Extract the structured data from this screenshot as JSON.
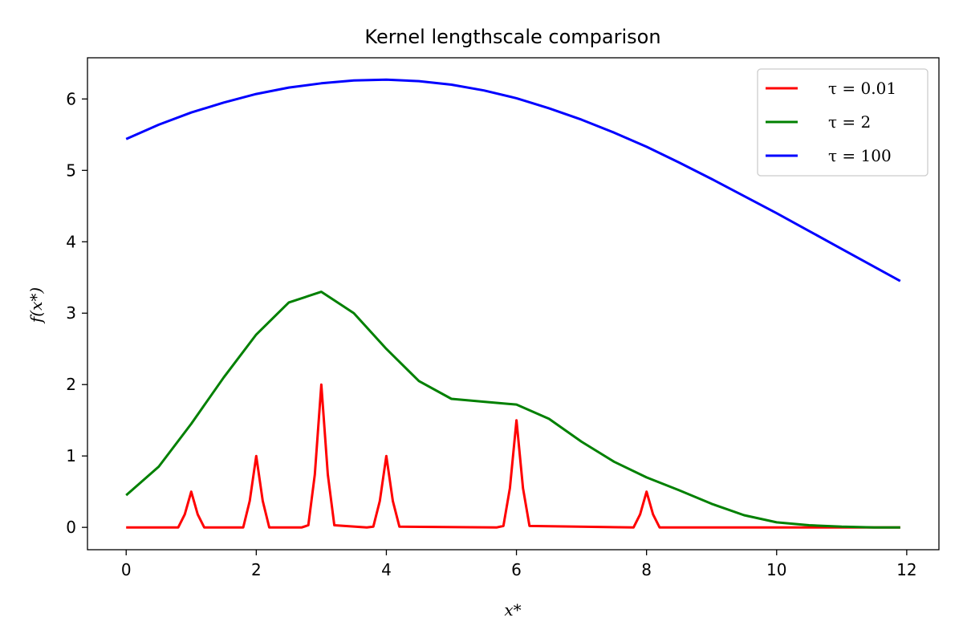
{
  "chart_data": {
    "type": "line",
    "title": "Kernel lengthscale comparison",
    "xlabel": "x*",
    "ylabel": "f(x*)",
    "xlim": [
      -0.595,
      12.495
    ],
    "ylim": [
      -0.313,
      6.577
    ],
    "xticks": [
      "0",
      "2",
      "4",
      "6",
      "8",
      "10",
      "12"
    ],
    "yticks": [
      "0",
      "1",
      "2",
      "3",
      "4",
      "5",
      "6"
    ],
    "grid": false,
    "legend_position": "top-right",
    "series": [
      {
        "name": "τ = 0.01",
        "color": "#ff0000",
        "x": [
          0,
          0.8,
          0.9,
          1,
          1.1,
          1.2,
          1.8,
          1.9,
          2,
          2.1,
          2.2,
          2.7,
          2.8,
          2.9,
          3,
          3.1,
          3.2,
          3.7,
          3.8,
          3.9,
          4,
          4.1,
          4.2,
          5.7,
          5.8,
          5.9,
          6,
          6.1,
          6.2,
          7.8,
          7.9,
          8,
          8.1,
          8.2,
          11.9
        ],
        "y": [
          0,
          0,
          0.18,
          0.5,
          0.18,
          0,
          0,
          0.37,
          1,
          0.37,
          0,
          0,
          0.03,
          0.74,
          2,
          0.74,
          0.03,
          0,
          0.01,
          0.37,
          1,
          0.37,
          0.01,
          0,
          0.02,
          0.55,
          1.5,
          0.55,
          0.02,
          0,
          0.18,
          0.5,
          0.18,
          0,
          0
        ]
      },
      {
        "name": "τ = 2",
        "color": "#008000",
        "x": [
          0,
          0.5,
          1,
          1.5,
          2,
          2.5,
          3,
          3.5,
          4,
          4.5,
          5,
          5.5,
          6,
          6.5,
          7,
          7.5,
          8,
          8.5,
          9,
          9.5,
          10,
          10.5,
          11,
          11.5,
          11.9
        ],
        "y": [
          0.45,
          0.85,
          1.45,
          2.1,
          2.7,
          3.15,
          3.3,
          3.0,
          2.5,
          2.05,
          1.8,
          1.76,
          1.72,
          1.52,
          1.2,
          0.92,
          0.7,
          0.52,
          0.33,
          0.17,
          0.07,
          0.03,
          0.01,
          0,
          0
        ]
      },
      {
        "name": "τ = 100",
        "color": "#0000ff",
        "x": [
          0,
          0.5,
          1,
          1.5,
          2,
          2.5,
          3,
          3.5,
          4,
          4.5,
          5,
          5.5,
          6,
          6.5,
          7,
          7.5,
          8,
          8.5,
          9,
          9.5,
          10,
          10.5,
          11,
          11.5,
          11.9
        ],
        "y": [
          5.44,
          5.64,
          5.81,
          5.95,
          6.07,
          6.16,
          6.22,
          6.26,
          6.27,
          6.25,
          6.2,
          6.12,
          6.01,
          5.87,
          5.71,
          5.53,
          5.33,
          5.11,
          4.88,
          4.64,
          4.4,
          4.15,
          3.9,
          3.65,
          3.45
        ]
      }
    ]
  }
}
